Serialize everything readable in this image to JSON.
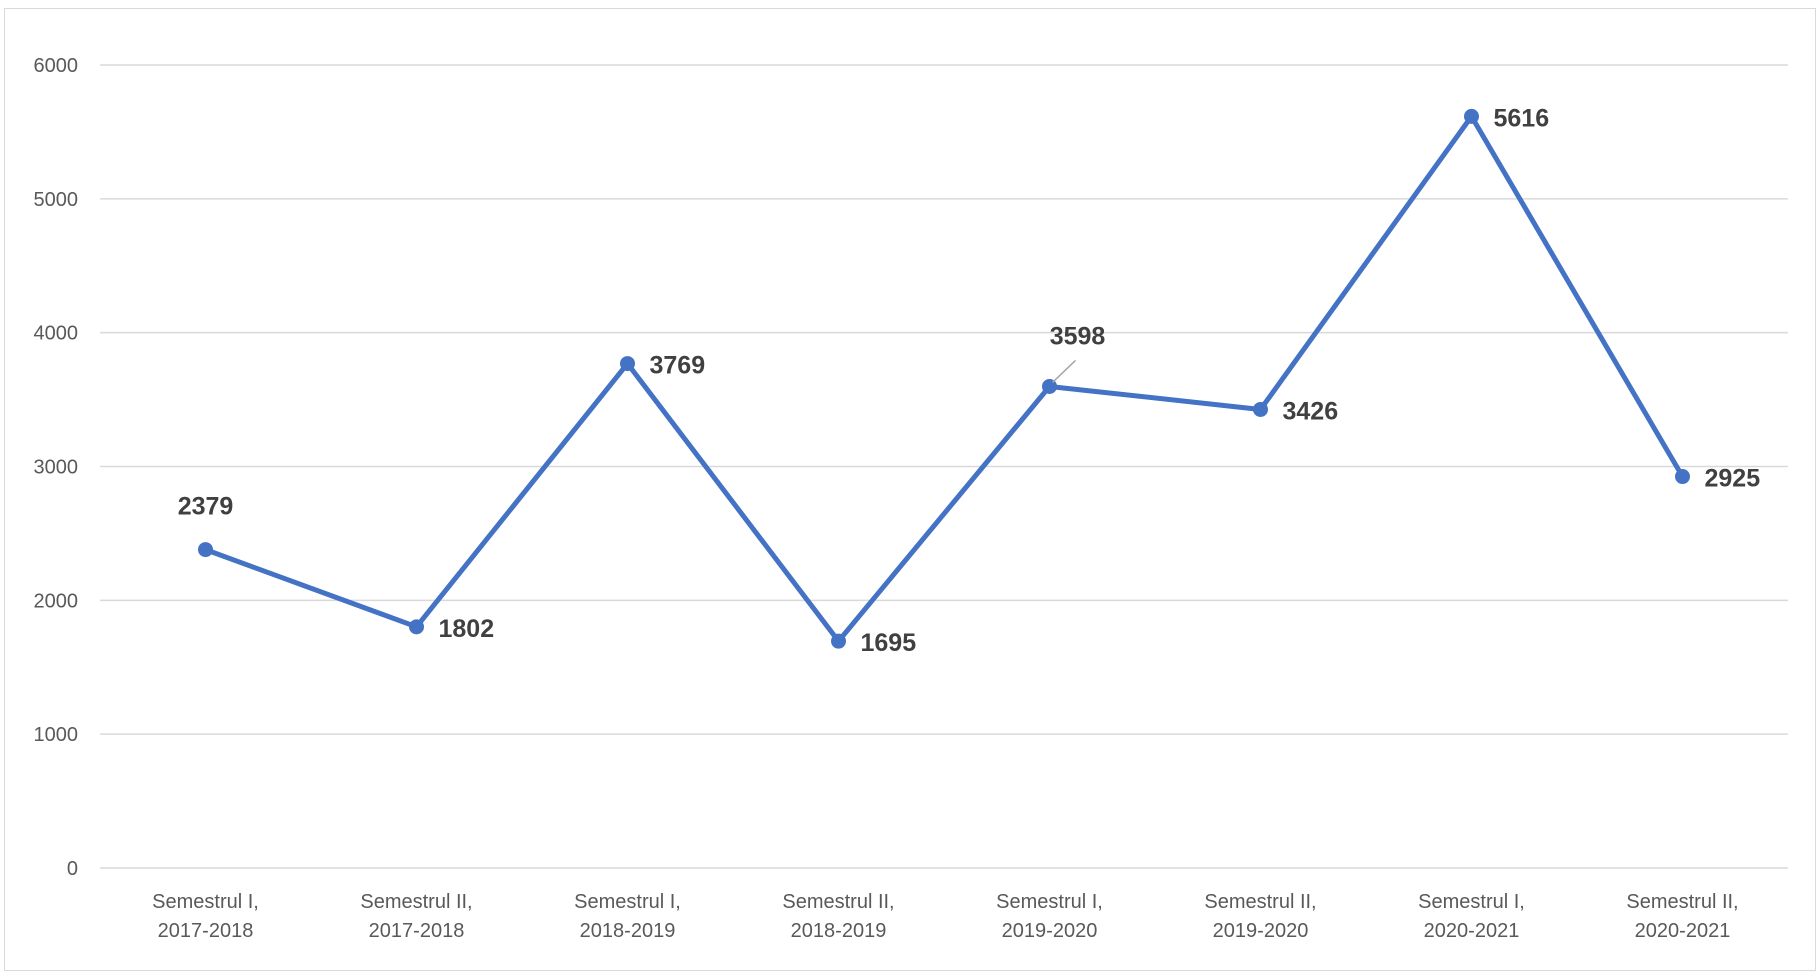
{
  "chart_data": {
    "type": "line",
    "categories": [
      [
        "Semestrul I,",
        "2017-2018"
      ],
      [
        "Semestrul II,",
        "2017-2018"
      ],
      [
        "Semestrul I,",
        "2018-2019"
      ],
      [
        "Semestrul II,",
        "2018-2019"
      ],
      [
        "Semestrul I,",
        "2019-2020"
      ],
      [
        "Semestrul II,",
        "2019-2020"
      ],
      [
        "Semestrul I,",
        "2020-2021"
      ],
      [
        "Semestrul II,",
        "2020-2021"
      ]
    ],
    "series": [
      {
        "values": [
          2379,
          1802,
          3769,
          1695,
          3598,
          3426,
          5616,
          2925
        ],
        "color": "#4472c4"
      }
    ],
    "data_labels": [
      "2379",
      "1802",
      "3769",
      "1695",
      "3598",
      "3426",
      "5616",
      "2925"
    ],
    "ylim": [
      0,
      6000
    ],
    "yticks": [
      0,
      1000,
      2000,
      3000,
      4000,
      5000,
      6000
    ],
    "grid": true,
    "gridline_color": "#d9d9d9",
    "label_color": "#404040",
    "title": "",
    "xlabel": "",
    "ylabel": ""
  }
}
